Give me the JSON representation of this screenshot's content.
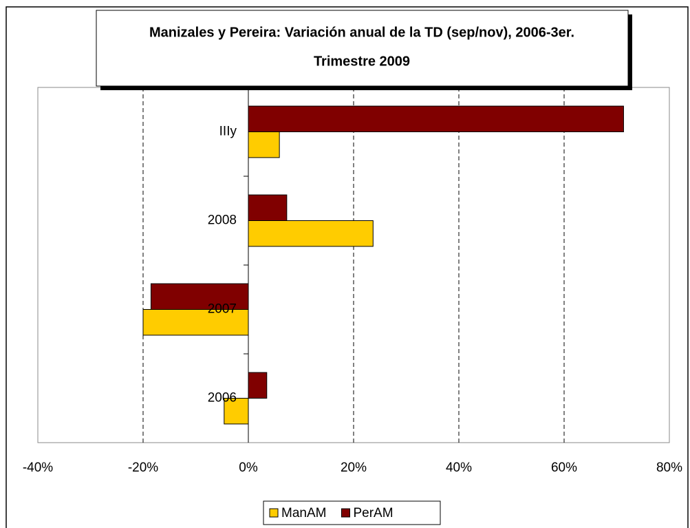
{
  "chart_data": {
    "type": "bar",
    "orientation": "horizontal",
    "title": [
      "Manizales y Pereira: Variación anual de la TD (sep/nov),  2006-3er.",
      "Trimestre 2009"
    ],
    "categories": [
      "2006",
      "2007",
      "2008",
      "IIIy"
    ],
    "series": [
      {
        "name": "ManAM",
        "color": "#ffcc00",
        "values": [
          -4.6,
          -20,
          23.7,
          5.9
        ]
      },
      {
        "name": "PerAM",
        "color": "#800000",
        "values": [
          3.5,
          -18.5,
          7.3,
          71.3
        ]
      }
    ],
    "xlim": [
      -40,
      80
    ],
    "xticks": [
      {
        "value": -40,
        "label": "-40%"
      },
      {
        "value": -20,
        "label": "-20%"
      },
      {
        "value": 0,
        "label": "0%"
      },
      {
        "value": 20,
        "label": "20%"
      },
      {
        "value": 40,
        "label": "40%"
      },
      {
        "value": 60,
        "label": "60%"
      },
      {
        "value": 80,
        "label": "80%"
      }
    ],
    "grid": true,
    "legend": "bottom"
  }
}
